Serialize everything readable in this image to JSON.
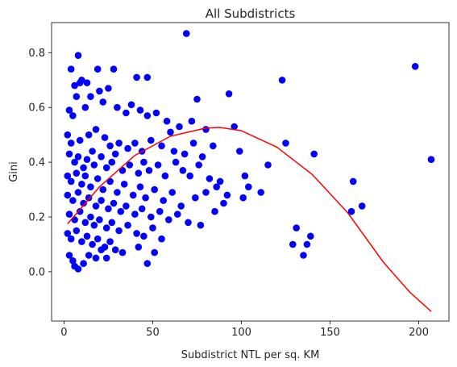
{
  "chart_data": {
    "type": "scatter",
    "title": "All Subdistricts",
    "xlabel": "Subdistrict NTL per sq. KM",
    "ylabel": "Gini",
    "xlim": [
      -7,
      217
    ],
    "ylim": [
      -0.18,
      0.91
    ],
    "xticks": [
      0,
      50,
      100,
      150,
      200
    ],
    "yticks": [
      0.0,
      0.2,
      0.4,
      0.6,
      0.8
    ],
    "ytick_labels": [
      "0.0",
      "0.2",
      "0.4",
      "0.6",
      "0.8"
    ],
    "grid": false,
    "legend": "none",
    "scatter_color": "#0000ff",
    "fit_color": "#ff0000",
    "points": [
      [
        69,
        0.87
      ],
      [
        8,
        0.79
      ],
      [
        10,
        0.7
      ],
      [
        4,
        0.74
      ],
      [
        19,
        0.74
      ],
      [
        28,
        0.74
      ],
      [
        41,
        0.71
      ],
      [
        47,
        0.71
      ],
      [
        6,
        0.68
      ],
      [
        9,
        0.69
      ],
      [
        13,
        0.69
      ],
      [
        20,
        0.66
      ],
      [
        25,
        0.67
      ],
      [
        15,
        0.64
      ],
      [
        7,
        0.64
      ],
      [
        3,
        0.59
      ],
      [
        5,
        0.57
      ],
      [
        12,
        0.6
      ],
      [
        22,
        0.62
      ],
      [
        30,
        0.6
      ],
      [
        35,
        0.58
      ],
      [
        38,
        0.61
      ],
      [
        43,
        0.59
      ],
      [
        47,
        0.57
      ],
      [
        52,
        0.58
      ],
      [
        58,
        0.55
      ],
      [
        65,
        0.53
      ],
      [
        72,
        0.55
      ],
      [
        75,
        0.63
      ],
      [
        80,
        0.52
      ],
      [
        60,
        0.51
      ],
      [
        93,
        0.65
      ],
      [
        2,
        0.5
      ],
      [
        4,
        0.47
      ],
      [
        9,
        0.48
      ],
      [
        14,
        0.5
      ],
      [
        18,
        0.52
      ],
      [
        23,
        0.49
      ],
      [
        26,
        0.46
      ],
      [
        31,
        0.47
      ],
      [
        36,
        0.45
      ],
      [
        40,
        0.47
      ],
      [
        44,
        0.44
      ],
      [
        49,
        0.48
      ],
      [
        55,
        0.46
      ],
      [
        62,
        0.44
      ],
      [
        68,
        0.43
      ],
      [
        73,
        0.47
      ],
      [
        78,
        0.42
      ],
      [
        84,
        0.46
      ],
      [
        96,
        0.53
      ],
      [
        99,
        0.44
      ],
      [
        123,
        0.7
      ],
      [
        125,
        0.47
      ],
      [
        141,
        0.43
      ],
      [
        198,
        0.75
      ],
      [
        207,
        0.41
      ],
      [
        3,
        0.43
      ],
      [
        6,
        0.4
      ],
      [
        8,
        0.42
      ],
      [
        11,
        0.38
      ],
      [
        13,
        0.41
      ],
      [
        16,
        0.44
      ],
      [
        17,
        0.39
      ],
      [
        21,
        0.42
      ],
      [
        24,
        0.38
      ],
      [
        27,
        0.4
      ],
      [
        29,
        0.43
      ],
      [
        33,
        0.37
      ],
      [
        37,
        0.39
      ],
      [
        42,
        0.36
      ],
      [
        45,
        0.4
      ],
      [
        48,
        0.37
      ],
      [
        53,
        0.39
      ],
      [
        57,
        0.35
      ],
      [
        63,
        0.4
      ],
      [
        67,
        0.37
      ],
      [
        71,
        0.35
      ],
      [
        76,
        0.39
      ],
      [
        82,
        0.34
      ],
      [
        88,
        0.33
      ],
      [
        102,
        0.35
      ],
      [
        104,
        0.31
      ],
      [
        115,
        0.39
      ],
      [
        2,
        0.35
      ],
      [
        4,
        0.33
      ],
      [
        7,
        0.36
      ],
      [
        10,
        0.32
      ],
      [
        12,
        0.35
      ],
      [
        15,
        0.31
      ],
      [
        19,
        0.34
      ],
      [
        22,
        0.3
      ],
      [
        26,
        0.33
      ],
      [
        30,
        0.29
      ],
      [
        34,
        0.32
      ],
      [
        39,
        0.28
      ],
      [
        43,
        0.31
      ],
      [
        46,
        0.27
      ],
      [
        51,
        0.3
      ],
      [
        56,
        0.26
      ],
      [
        61,
        0.29
      ],
      [
        66,
        0.24
      ],
      [
        74,
        0.27
      ],
      [
        80,
        0.29
      ],
      [
        86,
        0.31
      ],
      [
        90,
        0.25
      ],
      [
        101,
        0.27
      ],
      [
        111,
        0.29
      ],
      [
        163,
        0.33
      ],
      [
        168,
        0.24
      ],
      [
        162,
        0.22
      ],
      [
        2,
        0.28
      ],
      [
        5,
        0.26
      ],
      [
        8,
        0.29
      ],
      [
        11,
        0.25
      ],
      [
        14,
        0.27
      ],
      [
        18,
        0.24
      ],
      [
        21,
        0.26
      ],
      [
        25,
        0.23
      ],
      [
        28,
        0.25
      ],
      [
        32,
        0.22
      ],
      [
        35,
        0.24
      ],
      [
        40,
        0.21
      ],
      [
        44,
        0.23
      ],
      [
        49,
        0.2
      ],
      [
        54,
        0.22
      ],
      [
        59,
        0.19
      ],
      [
        64,
        0.21
      ],
      [
        70,
        0.18
      ],
      [
        77,
        0.17
      ],
      [
        85,
        0.22
      ],
      [
        92,
        0.28
      ],
      [
        3,
        0.21
      ],
      [
        6,
        0.19
      ],
      [
        9,
        0.22
      ],
      [
        12,
        0.18
      ],
      [
        15,
        0.2
      ],
      [
        17,
        0.17
      ],
      [
        20,
        0.19
      ],
      [
        24,
        0.16
      ],
      [
        27,
        0.18
      ],
      [
        31,
        0.15
      ],
      [
        36,
        0.17
      ],
      [
        41,
        0.14
      ],
      [
        45,
        0.13
      ],
      [
        50,
        0.16
      ],
      [
        55,
        0.12
      ],
      [
        2,
        0.14
      ],
      [
        4,
        0.12
      ],
      [
        7,
        0.15
      ],
      [
        10,
        0.11
      ],
      [
        13,
        0.13
      ],
      [
        16,
        0.1
      ],
      [
        19,
        0.12
      ],
      [
        23,
        0.09
      ],
      [
        26,
        0.11
      ],
      [
        29,
        0.08
      ],
      [
        33,
        0.07
      ],
      [
        42,
        0.09
      ],
      [
        51,
        0.07
      ],
      [
        47,
        0.03
      ],
      [
        3,
        0.06
      ],
      [
        5,
        0.04
      ],
      [
        8,
        0.01
      ],
      [
        6,
        0.02
      ],
      [
        11,
        0.03
      ],
      [
        14,
        0.06
      ],
      [
        18,
        0.05
      ],
      [
        21,
        0.08
      ],
      [
        24,
        0.05
      ],
      [
        131,
        0.16
      ],
      [
        129,
        0.1
      ],
      [
        137,
        0.1
      ],
      [
        139,
        0.13
      ],
      [
        135,
        0.06
      ]
    ],
    "fit_curve": {
      "label": "",
      "x": [
        2,
        20,
        40,
        60,
        80,
        88,
        100,
        120,
        140,
        160,
        180,
        195,
        207
      ],
      "y": [
        0.175,
        0.31,
        0.425,
        0.495,
        0.525,
        0.527,
        0.515,
        0.455,
        0.355,
        0.215,
        0.035,
        -0.075,
        -0.145
      ]
    }
  }
}
